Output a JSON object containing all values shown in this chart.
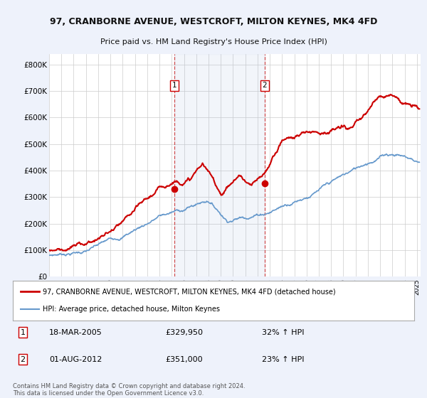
{
  "title": "97, CRANBORNE AVENUE, WESTCROFT, MILTON KEYNES, MK4 4FD",
  "subtitle": "Price paid vs. HM Land Registry's House Price Index (HPI)",
  "ylabel_ticks": [
    "£0",
    "£100K",
    "£200K",
    "£300K",
    "£400K",
    "£500K",
    "£600K",
    "£700K",
    "£800K"
  ],
  "ytick_vals": [
    0,
    100000,
    200000,
    300000,
    400000,
    500000,
    600000,
    700000,
    800000
  ],
  "ylim": [
    0,
    840000
  ],
  "background_color": "#eef2fb",
  "plot_bg_color": "#ffffff",
  "hpi_color": "#6699cc",
  "price_color": "#cc0000",
  "legend_label_price": "97, CRANBORNE AVENUE, WESTCROFT, MILTON KEYNES, MK4 4FD (detached house)",
  "legend_label_hpi": "HPI: Average price, detached house, Milton Keynes",
  "marker1_year": 2005.21,
  "marker1_price": 329950,
  "marker2_year": 2012.58,
  "marker2_price": 351000,
  "vline1_year": 2005.21,
  "vline2_year": 2012.58,
  "marker1_date": "18-MAR-2005",
  "marker1_price_str": "£329,950",
  "marker1_pct": "32% ↑ HPI",
  "marker2_date": "01-AUG-2012",
  "marker2_price_str": "£351,000",
  "marker2_pct": "23% ↑ HPI",
  "footer": "Contains HM Land Registry data © Crown copyright and database right 2024.\nThis data is licensed under the Open Government Licence v3.0.",
  "xlim_start": 1995,
  "xlim_end": 2025.3
}
